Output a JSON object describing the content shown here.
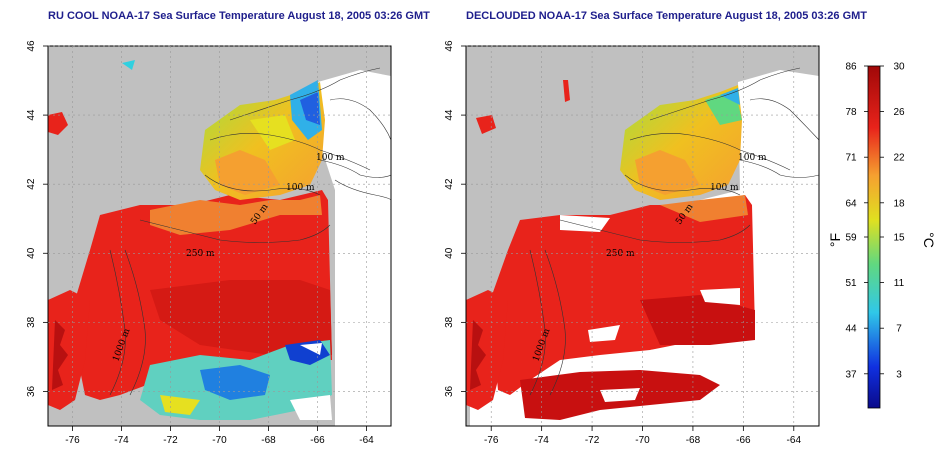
{
  "panels": [
    {
      "title": "RU COOL NOAA-17 Sea Surface Temperature August 18, 2005 03:26 GMT",
      "type": "cool"
    },
    {
      "title": "DECLOUDED NOAA-17 Sea Surface Temperature August 18, 2005 03:26 GMT",
      "type": "declouded"
    }
  ],
  "axes": {
    "x_ticks": [
      "-76",
      "-74",
      "-72",
      "-70",
      "-68",
      "-66",
      "-64"
    ],
    "x_values": [
      -76,
      -74,
      -72,
      -70,
      -68,
      -66,
      -64
    ],
    "y_ticks": [
      "46",
      "44",
      "42",
      "40",
      "38",
      "36"
    ],
    "y_values": [
      46,
      44,
      42,
      40,
      38,
      36
    ],
    "lon_range": [
      -77,
      -63
    ],
    "lat_range": [
      35,
      46
    ]
  },
  "contour_labels": [
    "100 m",
    "100 m",
    "50 m",
    "250 m",
    "1000 m",
    "m"
  ],
  "colorbar": {
    "fahrenheit_ticks": [
      "86",
      "78",
      "71",
      "64",
      "59",
      "51",
      "44",
      "37"
    ],
    "celsius_ticks": [
      "30",
      "26",
      "22",
      "18",
      "15",
      "11",
      "7",
      "3"
    ],
    "fahrenheit_label": "°F",
    "celsius_label": "°C",
    "range_c": [
      0,
      30
    ]
  },
  "colors": {
    "land": "#c0c0c0",
    "warm": "#e8231b",
    "hot": "#c81010",
    "orange": "#f5a030",
    "yellow": "#e6e020",
    "green": "#7fd060",
    "cyan": "#30d0e0",
    "blue": "#2060e0",
    "title": "#1e1e8c"
  }
}
